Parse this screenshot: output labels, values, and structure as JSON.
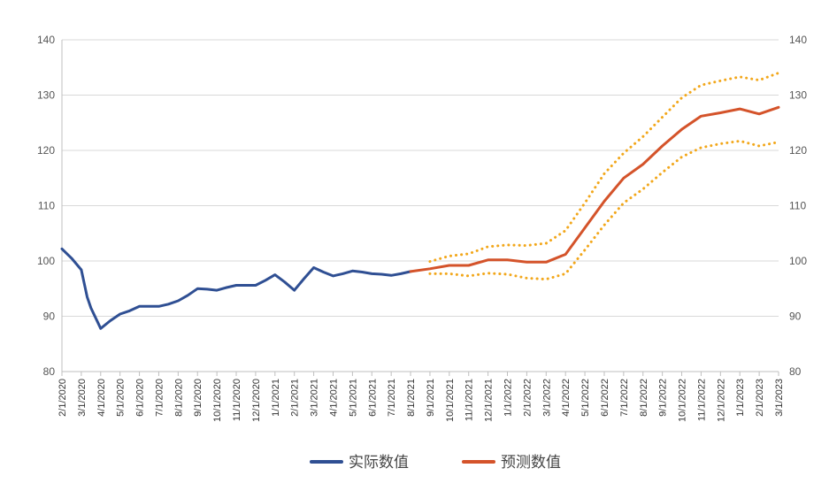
{
  "chart_data": {
    "type": "line",
    "title": "",
    "xlabel": "",
    "ylabel": "",
    "ylim": [
      80,
      140
    ],
    "yticks": [
      80,
      90,
      100,
      110,
      120,
      130,
      140
    ],
    "grid": true,
    "legend_position": "bottom",
    "categories": [
      "2/1/2020",
      "3/1/2020",
      "4/1/2020",
      "5/1/2020",
      "6/1/2020",
      "7/1/2020",
      "8/1/2020",
      "9/1/2020",
      "10/1/2020",
      "11/1/2020",
      "12/1/2020",
      "1/1/2021",
      "2/1/2021",
      "3/1/2021",
      "4/1/2021",
      "5/1/2021",
      "6/1/2021",
      "7/1/2021",
      "8/1/2021",
      "9/1/2021",
      "10/1/2021",
      "11/1/2021",
      "12/1/2021",
      "1/1/2022",
      "2/1/2022",
      "3/1/2022",
      "4/1/2022",
      "5/1/2022",
      "6/1/2022",
      "7/1/2022",
      "8/1/2022",
      "9/1/2022",
      "10/1/2022",
      "11/1/2022",
      "12/1/2022",
      "1/1/2023",
      "2/1/2023",
      "3/1/2023"
    ],
    "series": [
      {
        "name": "实际数值",
        "color": "#2f4f93",
        "style": "solid",
        "points": [
          [
            0,
            102.2
          ],
          [
            0.5,
            100.5
          ],
          [
            1,
            98.4
          ],
          [
            1.3,
            93.5
          ],
          [
            1.5,
            91.5
          ],
          [
            2,
            87.8
          ],
          [
            2.5,
            89.2
          ],
          [
            3,
            90.4
          ],
          [
            3.5,
            91.0
          ],
          [
            4,
            91.8
          ],
          [
            4.5,
            91.8
          ],
          [
            5,
            91.8
          ],
          [
            5.5,
            92.2
          ],
          [
            6,
            92.8
          ],
          [
            6.5,
            93.8
          ],
          [
            7,
            95.0
          ],
          [
            7.5,
            94.9
          ],
          [
            8,
            94.7
          ],
          [
            8.5,
            95.2
          ],
          [
            9,
            95.6
          ],
          [
            9.5,
            95.6
          ],
          [
            10,
            95.6
          ],
          [
            10.5,
            96.5
          ],
          [
            11,
            97.5
          ],
          [
            11.5,
            96.2
          ],
          [
            12,
            94.7
          ],
          [
            12.5,
            96.8
          ],
          [
            13,
            98.8
          ],
          [
            13.5,
            98.0
          ],
          [
            14,
            97.3
          ],
          [
            14.5,
            97.7
          ],
          [
            15,
            98.2
          ],
          [
            15.5,
            98.0
          ],
          [
            16,
            97.7
          ],
          [
            16.5,
            97.6
          ],
          [
            17,
            97.4
          ],
          [
            17.5,
            97.7
          ],
          [
            18,
            98.1
          ]
        ]
      },
      {
        "name": "预测数值",
        "color": "#d4532a",
        "style": "solid",
        "points": [
          [
            18,
            98.1
          ],
          [
            19,
            98.6
          ],
          [
            20,
            99.2
          ],
          [
            21,
            99.2
          ],
          [
            22,
            100.2
          ],
          [
            23,
            100.2
          ],
          [
            24,
            99.8
          ],
          [
            25,
            99.8
          ],
          [
            26,
            101.2
          ],
          [
            27,
            106.0
          ],
          [
            28,
            110.8
          ],
          [
            29,
            115.0
          ],
          [
            30,
            117.5
          ],
          [
            31,
            120.8
          ],
          [
            32,
            123.8
          ],
          [
            33,
            126.2
          ],
          [
            34,
            126.8
          ],
          [
            35,
            127.5
          ],
          [
            36,
            126.6
          ],
          [
            37,
            127.8
          ]
        ]
      },
      {
        "color": "#f2a71b",
        "style": "dotted",
        "points": [
          [
            19,
            99.9
          ],
          [
            20,
            100.9
          ],
          [
            21,
            101.3
          ],
          [
            22,
            102.6
          ],
          [
            23,
            102.9
          ],
          [
            24,
            102.8
          ],
          [
            25,
            103.2
          ],
          [
            26,
            105.5
          ],
          [
            27,
            110.5
          ],
          [
            28,
            115.8
          ],
          [
            29,
            119.5
          ],
          [
            30,
            122.5
          ],
          [
            31,
            126.0
          ],
          [
            32,
            129.5
          ],
          [
            33,
            131.8
          ],
          [
            34,
            132.6
          ],
          [
            35,
            133.3
          ],
          [
            36,
            132.7
          ],
          [
            37,
            134.0
          ]
        ]
      },
      {
        "color": "#f2a71b",
        "style": "dotted",
        "points": [
          [
            19,
            97.7
          ],
          [
            20,
            97.7
          ],
          [
            21,
            97.3
          ],
          [
            22,
            97.8
          ],
          [
            23,
            97.6
          ],
          [
            24,
            96.9
          ],
          [
            25,
            96.7
          ],
          [
            26,
            97.7
          ],
          [
            27,
            102.0
          ],
          [
            28,
            106.5
          ],
          [
            29,
            110.5
          ],
          [
            30,
            113.0
          ],
          [
            31,
            116.0
          ],
          [
            32,
            118.8
          ],
          [
            33,
            120.5
          ],
          [
            34,
            121.2
          ],
          [
            35,
            121.7
          ],
          [
            36,
            120.8
          ],
          [
            37,
            121.5
          ]
        ]
      }
    ]
  }
}
